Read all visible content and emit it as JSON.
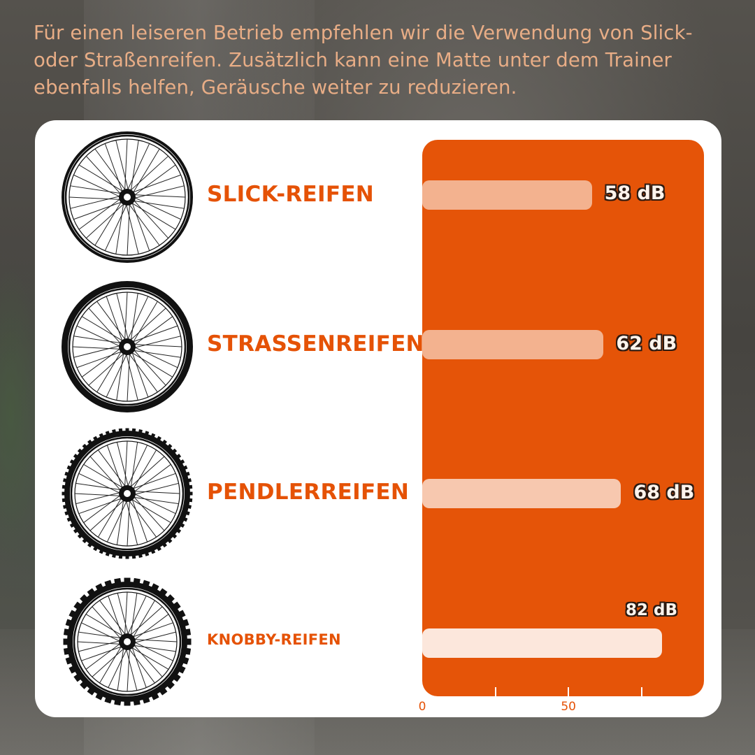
{
  "headline": "Für einen leiseren Betrieb empfehlen wir die Verwendung von Slick- oder Straßenreifen. Zusätzlich kann eine Matte unter dem Trainer ebenfalls helfen, Geräusche weiter zu reduzieren.",
  "colors": {
    "accent": "#e55206",
    "plot_background": "#e55408",
    "bar_fill": "#f6b597",
    "headline_text": "#e8ad86"
  },
  "icons": [
    "slick-wheel-icon",
    "road-wheel-icon",
    "commuter-wheel-icon",
    "knobby-wheel-icon"
  ],
  "chart_data": {
    "type": "bar",
    "orientation": "horizontal",
    "categories": [
      "SLICK-REIFEN",
      "STRASSENREIFEN",
      "PENDLERREIFEN",
      "KNOBBY-REIFEN"
    ],
    "values": [
      58,
      62,
      68,
      82
    ],
    "data_labels": [
      "58 dB",
      "62 dB",
      "68 dB",
      "82 dB"
    ],
    "unit": "dB",
    "xlim": [
      0,
      82
    ],
    "xticks": [
      0,
      25,
      50,
      75
    ],
    "xtick_labels": [
      "0",
      "",
      "50",
      ""
    ],
    "grid": false,
    "legend": "none"
  }
}
